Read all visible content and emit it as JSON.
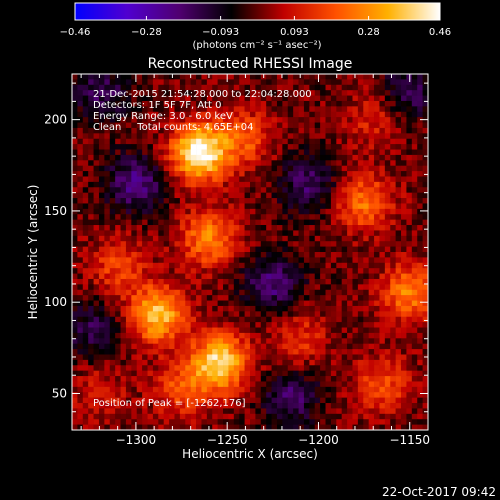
{
  "chart_data": {
    "type": "heatmap",
    "title": "Reconstructed RHESSI Image",
    "xlabel": "Heliocentric X (arcsec)",
    "ylabel": "Heliocentric Y (arcsec)",
    "xlim": [
      -1335,
      -1140
    ],
    "ylim": [
      30,
      225
    ],
    "x_ticks": [
      -1300,
      -1250,
      -1200,
      -1150
    ],
    "y_ticks": [
      50,
      100,
      150,
      200
    ],
    "x_tick_labels": [
      "−1300",
      "−1250",
      "−1200",
      "−1150"
    ],
    "y_tick_labels": [
      "50",
      "100",
      "150",
      "200"
    ],
    "colorbar": {
      "range": [
        -0.46,
        0.46
      ],
      "ticks": [
        -0.46,
        -0.28,
        -0.093,
        0.093,
        0.28,
        0.46
      ],
      "tick_labels": [
        "−0.46",
        "−0.28",
        "−0.093",
        "0.093",
        "0.28",
        "0.46"
      ],
      "unit_label": "(photons cm⁻² s⁻¹ asec⁻²)",
      "colormap": [
        "#0000ff",
        "#5000d0",
        "#500070",
        "#000000",
        "#c00000",
        "#ff5000",
        "#ffb000",
        "#ffffff"
      ]
    },
    "annotations": [
      "21-Dec-2015 21:54:28.000 to 22:04:28.000",
      "Detectors: 1F 5F 7F, Att 0",
      "Energy Range: 3.0 - 6.0 keV",
      "Clean     Total counts: 4.65E+04"
    ],
    "peak_label": "Position of Peak = [-1262,176]",
    "sources": [
      {
        "x": -1265,
        "y": 182,
        "amp": 0.46
      },
      {
        "x": -1260,
        "y": 135,
        "amp": 0.26
      },
      {
        "x": -1288,
        "y": 93,
        "amp": 0.36
      },
      {
        "x": -1254,
        "y": 67,
        "amp": 0.4
      },
      {
        "x": -1275,
        "y": 52,
        "amp": 0.18
      },
      {
        "x": -1310,
        "y": 120,
        "amp": 0.16
      },
      {
        "x": -1240,
        "y": 190,
        "amp": 0.18
      },
      {
        "x": -1175,
        "y": 155,
        "amp": 0.24
      },
      {
        "x": -1150,
        "y": 105,
        "amp": 0.26
      },
      {
        "x": -1170,
        "y": 200,
        "amp": 0.12
      },
      {
        "x": -1165,
        "y": 55,
        "amp": 0.18
      },
      {
        "x": -1210,
        "y": 80,
        "amp": 0.14
      },
      {
        "x": -1320,
        "y": 50,
        "amp": 0.1
      },
      {
        "x": -1225,
        "y": 110,
        "amp": -0.2
      },
      {
        "x": -1300,
        "y": 165,
        "amp": -0.22
      },
      {
        "x": -1205,
        "y": 165,
        "amp": -0.18
      },
      {
        "x": -1215,
        "y": 48,
        "amp": -0.18
      },
      {
        "x": -1150,
        "y": 215,
        "amp": -0.16
      },
      {
        "x": -1320,
        "y": 215,
        "amp": -0.16
      },
      {
        "x": -1325,
        "y": 85,
        "amp": -0.14
      }
    ]
  },
  "footer_date": "22-Oct-2017 09:42"
}
